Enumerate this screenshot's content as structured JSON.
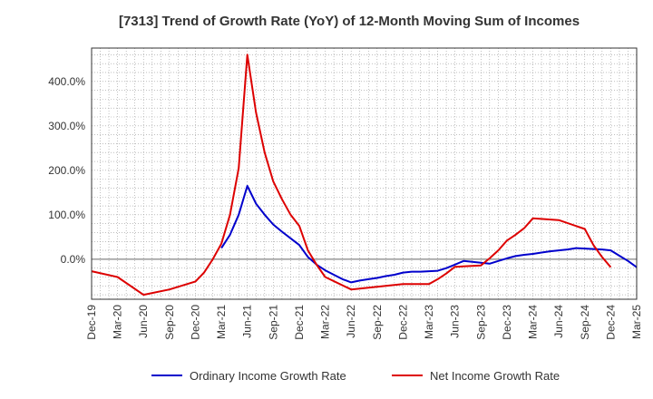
{
  "chart_data": {
    "type": "line",
    "title": "[7313]  Trend of Growth Rate (YoY) of 12-Month Moving Sum of Incomes",
    "xlabel": "",
    "ylabel": "",
    "x_ticks": [
      "Dec-19",
      "Mar-20",
      "Jun-20",
      "Sep-20",
      "Dec-20",
      "Mar-21",
      "Jun-21",
      "Sep-21",
      "Dec-21",
      "Mar-22",
      "Jun-22",
      "Sep-22",
      "Dec-22",
      "Mar-23",
      "Jun-23",
      "Sep-23",
      "Dec-23",
      "Mar-24",
      "Jun-24",
      "Sep-24",
      "Dec-24",
      "Mar-25"
    ],
    "y_ticks": [
      {
        "value": 0,
        "label": "0.0%"
      },
      {
        "value": 100,
        "label": "100.0%"
      },
      {
        "value": 200,
        "label": "200.0%"
      },
      {
        "value": 300,
        "label": "300.0%"
      },
      {
        "value": 400,
        "label": "400.0%"
      }
    ],
    "ylim": [
      -90,
      475
    ],
    "grid": true,
    "legend_position": "bottom",
    "series": [
      {
        "name": "Ordinary Income Growth Rate",
        "color": "#0000cc",
        "values": [
          {
            "x": 15,
            "y": 25
          },
          {
            "x": 16,
            "y": 55
          },
          {
            "x": 17,
            "y": 100
          },
          {
            "x": 18,
            "y": 165
          },
          {
            "x": 19,
            "y": 125
          },
          {
            "x": 20,
            "y": 100
          },
          {
            "x": 21,
            "y": 78
          },
          {
            "x": 22,
            "y": 62
          },
          {
            "x": 23,
            "y": 47
          },
          {
            "x": 24,
            "y": 32
          },
          {
            "x": 25,
            "y": 5
          },
          {
            "x": 26,
            "y": -12
          },
          {
            "x": 27,
            "y": -25
          },
          {
            "x": 28,
            "y": -35
          },
          {
            "x": 29,
            "y": -45
          },
          {
            "x": 30,
            "y": -52
          },
          {
            "x": 31,
            "y": -48
          },
          {
            "x": 32,
            "y": -45
          },
          {
            "x": 33,
            "y": -42
          },
          {
            "x": 34,
            "y": -38
          },
          {
            "x": 35,
            "y": -35
          },
          {
            "x": 36,
            "y": -30
          },
          {
            "x": 37,
            "y": -28
          },
          {
            "x": 38,
            "y": -28
          },
          {
            "x": 39,
            "y": -27
          },
          {
            "x": 40,
            "y": -26
          },
          {
            "x": 41,
            "y": -20
          },
          {
            "x": 42,
            "y": -12
          },
          {
            "x": 43,
            "y": -4
          },
          {
            "x": 44,
            "y": -6
          },
          {
            "x": 45,
            "y": -8
          },
          {
            "x": 46,
            "y": -10
          },
          {
            "x": 47,
            "y": -4
          },
          {
            "x": 48,
            "y": 2
          },
          {
            "x": 49,
            "y": 7
          },
          {
            "x": 50,
            "y": 10
          },
          {
            "x": 51,
            "y": 12
          },
          {
            "x": 52,
            "y": 15
          },
          {
            "x": 53,
            "y": 18
          },
          {
            "x": 54,
            "y": 20
          },
          {
            "x": 55,
            "y": 22
          },
          {
            "x": 56,
            "y": 25
          },
          {
            "x": 57,
            "y": 24
          },
          {
            "x": 58,
            "y": 23
          },
          {
            "x": 59,
            "y": 22
          },
          {
            "x": 60,
            "y": 20
          },
          {
            "x": 61,
            "y": 8
          },
          {
            "x": 62,
            "y": -4
          },
          {
            "x": 63,
            "y": -18
          }
        ]
      },
      {
        "name": "Net Income Growth Rate",
        "color": "#dd0000",
        "values": [
          {
            "x": 0,
            "y": -27
          },
          {
            "x": 3,
            "y": -40
          },
          {
            "x": 6,
            "y": -80
          },
          {
            "x": 9,
            "y": -68
          },
          {
            "x": 12,
            "y": -50
          },
          {
            "x": 13,
            "y": -30
          },
          {
            "x": 14,
            "y": 0
          },
          {
            "x": 15,
            "y": 35
          },
          {
            "x": 16,
            "y": 100
          },
          {
            "x": 17,
            "y": 205
          },
          {
            "x": 18,
            "y": 460
          },
          {
            "x": 19,
            "y": 330
          },
          {
            "x": 20,
            "y": 240
          },
          {
            "x": 21,
            "y": 175
          },
          {
            "x": 22,
            "y": 135
          },
          {
            "x": 23,
            "y": 100
          },
          {
            "x": 24,
            "y": 75
          },
          {
            "x": 25,
            "y": 20
          },
          {
            "x": 26,
            "y": -12
          },
          {
            "x": 27,
            "y": -40
          },
          {
            "x": 30,
            "y": -68
          },
          {
            "x": 33,
            "y": -62
          },
          {
            "x": 36,
            "y": -56
          },
          {
            "x": 39,
            "y": -56
          },
          {
            "x": 40,
            "y": -45
          },
          {
            "x": 41,
            "y": -32
          },
          {
            "x": 42,
            "y": -17
          },
          {
            "x": 45,
            "y": -14
          },
          {
            "x": 46,
            "y": 2
          },
          {
            "x": 47,
            "y": 20
          },
          {
            "x": 48,
            "y": 42
          },
          {
            "x": 49,
            "y": 55
          },
          {
            "x": 50,
            "y": 70
          },
          {
            "x": 51,
            "y": 92
          },
          {
            "x": 54,
            "y": 88
          },
          {
            "x": 57,
            "y": 68
          },
          {
            "x": 58,
            "y": 32
          },
          {
            "x": 59,
            "y": 5
          },
          {
            "x": 60,
            "y": -18
          }
        ]
      }
    ]
  }
}
